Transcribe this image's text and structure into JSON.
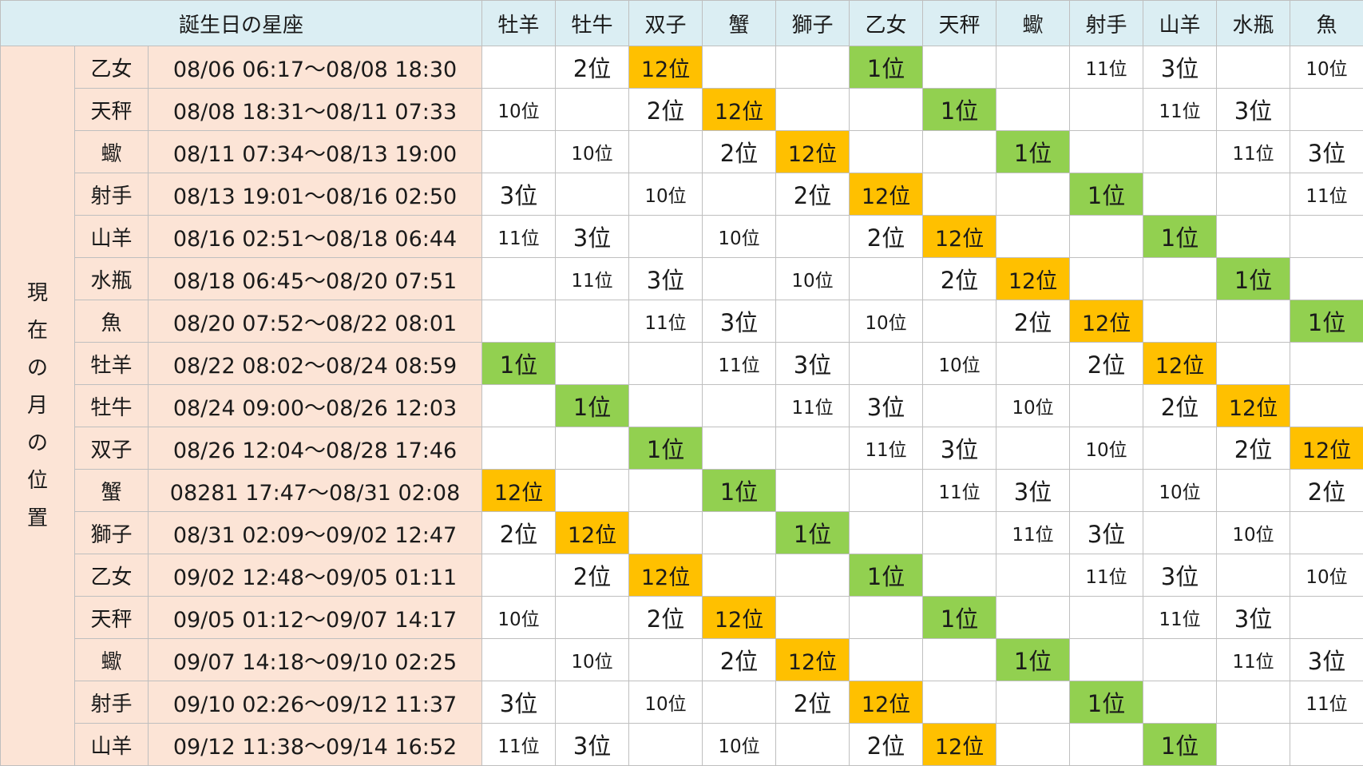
{
  "header": {
    "birth_sign_label": "誕生日の星座",
    "signs": [
      "牡羊",
      "牡牛",
      "双子",
      "蟹",
      "獅子",
      "乙女",
      "天秤",
      "蠍",
      "射手",
      "山羊",
      "水瓶",
      "魚"
    ]
  },
  "side_label": [
    "現",
    "在",
    "の",
    "月",
    "の",
    "位",
    "置"
  ],
  "colors": {
    "first_place": "#92d050",
    "last_place": "#ffc000",
    "row_label_bg": "#fce4d6",
    "header_bg": "#dbeef3"
  },
  "rows": [
    {
      "moon_sign": "乙女",
      "period": "08/06 06:17〜08/08 18:30",
      "ranks": [
        "",
        "2位",
        "12位",
        "",
        "",
        "1位",
        "",
        "",
        "11位",
        "3位",
        "",
        "10位"
      ]
    },
    {
      "moon_sign": "天秤",
      "period": "08/08 18:31〜08/11 07:33",
      "ranks": [
        "10位",
        "",
        "2位",
        "12位",
        "",
        "",
        "1位",
        "",
        "",
        "11位",
        "3位",
        ""
      ]
    },
    {
      "moon_sign": "蠍",
      "period": "08/11 07:34〜08/13 19:00",
      "ranks": [
        "",
        "10位",
        "",
        "2位",
        "12位",
        "",
        "",
        "1位",
        "",
        "",
        "11位",
        "3位"
      ]
    },
    {
      "moon_sign": "射手",
      "period": "08/13 19:01〜08/16 02:50",
      "ranks": [
        "3位",
        "",
        "10位",
        "",
        "2位",
        "12位",
        "",
        "",
        "1位",
        "",
        "",
        "11位"
      ]
    },
    {
      "moon_sign": "山羊",
      "period": "08/16 02:51〜08/18 06:44",
      "ranks": [
        "11位",
        "3位",
        "",
        "10位",
        "",
        "2位",
        "12位",
        "",
        "",
        "1位",
        "",
        ""
      ]
    },
    {
      "moon_sign": "水瓶",
      "period": "08/18 06:45〜08/20 07:51",
      "ranks": [
        "",
        "11位",
        "3位",
        "",
        "10位",
        "",
        "2位",
        "12位",
        "",
        "",
        "1位",
        ""
      ]
    },
    {
      "moon_sign": "魚",
      "period": "08/20 07:52〜08/22 08:01",
      "ranks": [
        "",
        "",
        "11位",
        "3位",
        "",
        "10位",
        "",
        "2位",
        "12位",
        "",
        "",
        "1位"
      ]
    },
    {
      "moon_sign": "牡羊",
      "period": "08/22 08:02〜08/24 08:59",
      "ranks": [
        "1位",
        "",
        "",
        "11位",
        "3位",
        "",
        "10位",
        "",
        "2位",
        "12位",
        "",
        ""
      ]
    },
    {
      "moon_sign": "牡牛",
      "period": "08/24 09:00〜08/26 12:03",
      "ranks": [
        "",
        "1位",
        "",
        "",
        "11位",
        "3位",
        "",
        "10位",
        "",
        "2位",
        "12位",
        ""
      ]
    },
    {
      "moon_sign": "双子",
      "period": "08/26 12:04〜08/28 17:46",
      "ranks": [
        "",
        "",
        "1位",
        "",
        "",
        "11位",
        "3位",
        "",
        "10位",
        "",
        "2位",
        "12位"
      ]
    },
    {
      "moon_sign": "蟹",
      "period": "08281 17:47〜08/31 02:08",
      "ranks": [
        "12位",
        "",
        "",
        "1位",
        "",
        "",
        "11位",
        "3位",
        "",
        "10位",
        "",
        "2位"
      ]
    },
    {
      "moon_sign": "獅子",
      "period": "08/31 02:09〜09/02 12:47",
      "ranks": [
        "2位",
        "12位",
        "",
        "",
        "1位",
        "",
        "",
        "11位",
        "3位",
        "",
        "10位",
        ""
      ]
    },
    {
      "moon_sign": "乙女",
      "period": "09/02 12:48〜09/05 01:11",
      "ranks": [
        "",
        "2位",
        "12位",
        "",
        "",
        "1位",
        "",
        "",
        "11位",
        "3位",
        "",
        "10位"
      ]
    },
    {
      "moon_sign": "天秤",
      "period": "09/05 01:12〜09/07 14:17",
      "ranks": [
        "10位",
        "",
        "2位",
        "12位",
        "",
        "",
        "1位",
        "",
        "",
        "11位",
        "3位",
        ""
      ]
    },
    {
      "moon_sign": "蠍",
      "period": "09/07 14:18〜09/10 02:25",
      "ranks": [
        "",
        "10位",
        "",
        "2位",
        "12位",
        "",
        "",
        "1位",
        "",
        "",
        "11位",
        "3位"
      ]
    },
    {
      "moon_sign": "射手",
      "period": "09/10 02:26〜09/12 11:37",
      "ranks": [
        "3位",
        "",
        "10位",
        "",
        "2位",
        "12位",
        "",
        "",
        "1位",
        "",
        "",
        "11位"
      ]
    },
    {
      "moon_sign": "山羊",
      "period": "09/12 11:38〜09/14 16:52",
      "ranks": [
        "11位",
        "3位",
        "",
        "10位",
        "",
        "2位",
        "12位",
        "",
        "",
        "1位",
        "",
        ""
      ]
    }
  ]
}
